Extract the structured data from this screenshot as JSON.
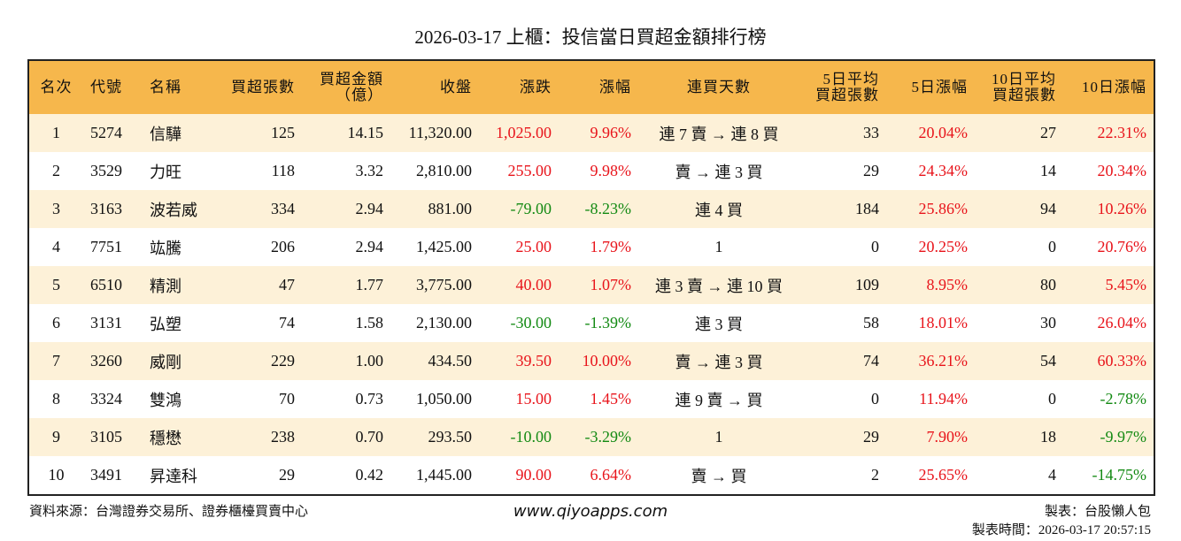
{
  "title": "2026-03-17 上櫃：投信當日買超金額排行榜",
  "table": {
    "header": [
      "名次",
      "代號",
      "名稱",
      "買超張數",
      "買超金額\n（億）",
      "收盤",
      "漲跌",
      "漲幅",
      "連買天數",
      "5日平均\n買超張數",
      "5日漲幅",
      "10日平均\n買超張數",
      "10日漲幅"
    ],
    "rows": [
      [
        "1",
        "5274",
        "信驊",
        "125",
        "14.15",
        "11,320.00",
        "1,025.00",
        "9.96%",
        "連 7 賣 → 連 8 買",
        "33",
        "20.04%",
        "27",
        "22.31%"
      ],
      [
        "2",
        "3529",
        "力旺",
        "118",
        "3.32",
        "2,810.00",
        "255.00",
        "9.98%",
        "賣 → 連 3 買",
        "29",
        "24.34%",
        "14",
        "20.34%"
      ],
      [
        "3",
        "3163",
        "波若威",
        "334",
        "2.94",
        "881.00",
        "-79.00",
        "-8.23%",
        "連 4 買",
        "184",
        "25.86%",
        "94",
        "10.26%"
      ],
      [
        "4",
        "7751",
        "竑騰",
        "206",
        "2.94",
        "1,425.00",
        "25.00",
        "1.79%",
        "1",
        "0",
        "20.25%",
        "0",
        "20.76%"
      ],
      [
        "5",
        "6510",
        "精測",
        "47",
        "1.77",
        "3,775.00",
        "40.00",
        "1.07%",
        "連 3 賣 → 連 10 買",
        "109",
        "8.95%",
        "80",
        "5.45%"
      ],
      [
        "6",
        "3131",
        "弘塑",
        "74",
        "1.58",
        "2,130.00",
        "-30.00",
        "-1.39%",
        "連 3 買",
        "58",
        "18.01%",
        "30",
        "26.04%"
      ],
      [
        "7",
        "3260",
        "威剛",
        "229",
        "1.00",
        "434.50",
        "39.50",
        "10.00%",
        "賣 → 連 3 買",
        "74",
        "36.21%",
        "54",
        "60.33%"
      ],
      [
        "8",
        "3324",
        "雙鴻",
        "70",
        "0.73",
        "1,050.00",
        "15.00",
        "1.45%",
        "連 9 賣 → 買",
        "0",
        "11.94%",
        "0",
        "-2.78%"
      ],
      [
        "9",
        "3105",
        "穩懋",
        "238",
        "0.70",
        "293.50",
        "-10.00",
        "-3.29%",
        "1",
        "29",
        "7.90%",
        "18",
        "-9.97%"
      ],
      [
        "10",
        "3491",
        "昇達科",
        "29",
        "0.42",
        "1,445.00",
        "90.00",
        "6.64%",
        "賣 → 買",
        "2",
        "25.65%",
        "4",
        "-14.75%"
      ]
    ]
  },
  "footer": {
    "source": "資料來源：台灣證券交易所、證券櫃檯買賣中心",
    "url": "www.qiyoapps.com",
    "author": "製表：台股懶人包",
    "time": "製表時間：2026-03-17 20:57:15"
  }
}
